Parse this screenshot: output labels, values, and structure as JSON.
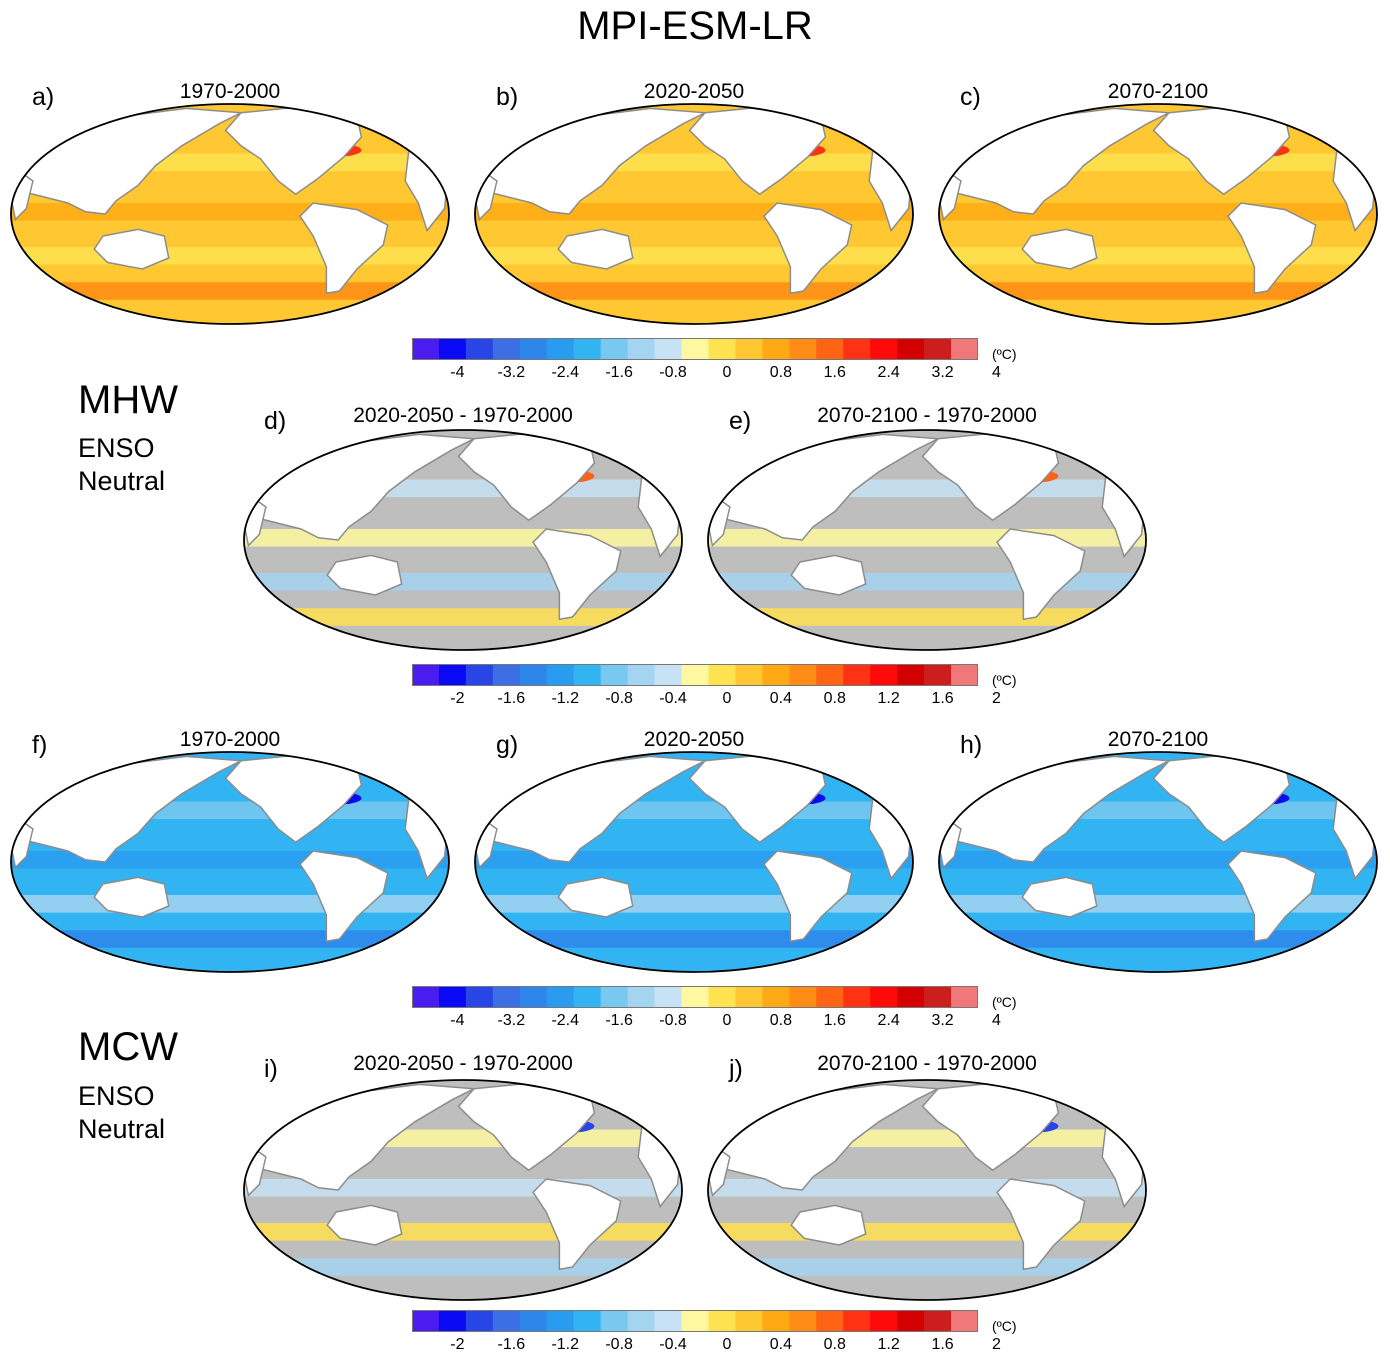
{
  "figure": {
    "title": "MPI-ESM-LR",
    "sections": [
      {
        "label": "MHW",
        "sublabel_1": "ENSO",
        "sublabel_2": "Neutral"
      },
      {
        "label": "MCW",
        "sublabel_1": "ENSO",
        "sublabel_2": "Neutral"
      }
    ]
  },
  "panels": [
    {
      "letter": "a)",
      "title": "1970-2000",
      "field": "mhw-absolute"
    },
    {
      "letter": "b)",
      "title": "2020-2050",
      "field": "mhw-absolute"
    },
    {
      "letter": "c)",
      "title": "2070-2100",
      "field": "mhw-absolute"
    },
    {
      "letter": "d)",
      "title": "2020-2050 - 1970-2000",
      "field": "mhw-difference"
    },
    {
      "letter": "e)",
      "title": "2070-2100 - 1970-2000",
      "field": "mhw-difference"
    },
    {
      "letter": "f)",
      "title": "1970-2000",
      "field": "mcw-absolute"
    },
    {
      "letter": "g)",
      "title": "2020-2050",
      "field": "mcw-absolute"
    },
    {
      "letter": "h)",
      "title": "2070-2100",
      "field": "mcw-absolute"
    },
    {
      "letter": "i)",
      "title": "2020-2050 - 1970-2000",
      "field": "mcw-difference"
    },
    {
      "letter": "j)",
      "title": "2070-2100 - 1970-2000",
      "field": "mcw-difference"
    }
  ],
  "colorbars": [
    {
      "ticks": [
        "-4",
        "-3.2",
        "-2.4",
        "-1.6",
        "-0.8",
        "0",
        "0.8",
        "1.6",
        "2.4",
        "3.2",
        "4"
      ],
      "unit": "(ºC)"
    },
    {
      "ticks": [
        "-2",
        "-1.6",
        "-1.2",
        "-0.8",
        "-0.4",
        "0",
        "0.4",
        "0.8",
        "1.2",
        "1.6",
        "2"
      ],
      "unit": "(ºC)"
    },
    {
      "ticks": [
        "-4",
        "-3.2",
        "-2.4",
        "-1.6",
        "-0.8",
        "0",
        "0.8",
        "1.6",
        "2.4",
        "3.2",
        "4"
      ],
      "unit": "(ºC)"
    },
    {
      "ticks": [
        "-2",
        "-1.6",
        "-1.2",
        "-0.8",
        "-0.4",
        "0",
        "0.4",
        "0.8",
        "1.2",
        "1.6",
        "2"
      ],
      "unit": "(ºC)"
    }
  ],
  "palette": [
    "#4b1cf0",
    "#0a0af5",
    "#2846e6",
    "#3c6ee6",
    "#2e86eb",
    "#2a9cf0",
    "#32b4f2",
    "#78c8f0",
    "#a5d4f0",
    "#c6e2f4",
    "#fff8a0",
    "#ffe250",
    "#ffc832",
    "#ffaa14",
    "#ff8c14",
    "#ff6414",
    "#ff3214",
    "#ff0a0a",
    "#d20000",
    "#cd1e1e",
    "#f07878"
  ],
  "colors": {
    "land": "#ffffff",
    "coast": "#8c8c8c",
    "not_significant": "#bebebe",
    "frame": "#000000"
  }
}
